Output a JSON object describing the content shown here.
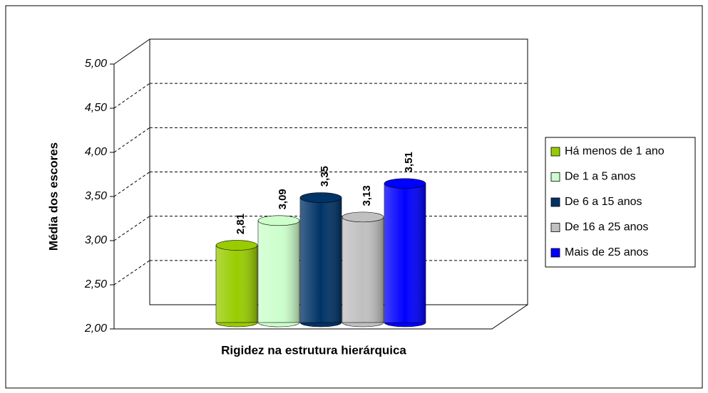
{
  "chart_data": {
    "type": "bar",
    "xlabel": "Rigidez na estrutura hierárquica",
    "ylabel": "Média dos escores",
    "ylim": [
      2,
      5
    ],
    "yticks": [
      {
        "value": 2,
        "label": "2,00"
      },
      {
        "value": 2.5,
        "label": "2,50"
      },
      {
        "value": 3,
        "label": "3,00"
      },
      {
        "value": 3.5,
        "label": "3,50"
      },
      {
        "value": 4,
        "label": "4,00"
      },
      {
        "value": 4.5,
        "label": "4,50"
      },
      {
        "value": 5,
        "label": "5,00"
      }
    ],
    "grid": true,
    "legend": "right",
    "series": [
      {
        "name": "Há menos de 1 ano",
        "color": "#99cc00",
        "values": [
          2.81
        ],
        "value_labels": [
          "2,81"
        ]
      },
      {
        "name": "De 1 a 5 anos",
        "color": "#ccffcc",
        "values": [
          3.09
        ],
        "value_labels": [
          "3,09"
        ]
      },
      {
        "name": "De 6 a 15 anos",
        "color": "#003366",
        "values": [
          3.35
        ],
        "value_labels": [
          "3,35"
        ]
      },
      {
        "name": "De 16 a 25 anos",
        "color": "#c0c0c0",
        "values": [
          3.13
        ],
        "value_labels": [
          "3,13"
        ]
      },
      {
        "name": "Mais de 25 anos",
        "color": "#0000ff",
        "values": [
          3.51
        ],
        "value_labels": [
          "3,51"
        ]
      }
    ]
  }
}
